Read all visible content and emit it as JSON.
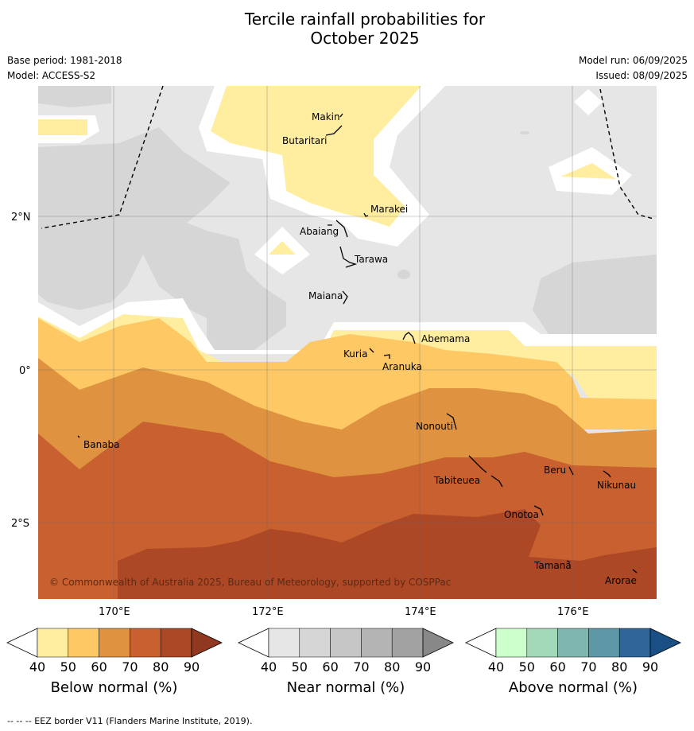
{
  "title": "Tercile rainfall probabilities for\nOctober 2025",
  "title_line1": "Tercile rainfall probabilities for",
  "title_line2": "October 2025",
  "base_period": "Base period: 1981-2018",
  "model": "Model: ACCESS-S2",
  "model_run": "Model run: 06/09/2025",
  "issued": "Issued: 08/09/2025",
  "lat_labels": [
    "2°N",
    "0°",
    "2°S"
  ],
  "lon_labels": [
    "170°E",
    "172°E",
    "174°E",
    "176°E"
  ],
  "places": [
    "Makin",
    "Butaritari",
    "Marakei",
    "Abaiang",
    "Tarawa",
    "Maiana",
    "Abemama",
    "Kuria",
    "Aranuka",
    "Nonouti",
    "Banaba",
    "Beru",
    "Nikunau",
    "Tabiteuea",
    "Onotoa",
    "Tamana",
    "Arorae"
  ],
  "copyright": "© Commonwealth of Australia 2025, Bureau of Meteorology, supported by COSPPac",
  "colorbars": [
    {
      "label": "Below normal (%)",
      "ticks": [
        "40",
        "50",
        "60",
        "70",
        "80",
        "90"
      ],
      "colors": [
        "#ffffff",
        "#ffeda0",
        "#fec965",
        "#df923f",
        "#c8602f",
        "#ad4826",
        "#903820"
      ]
    },
    {
      "label": "Near normal (%)",
      "ticks": [
        "40",
        "50",
        "60",
        "70",
        "80",
        "90"
      ],
      "colors": [
        "#ffffff",
        "#e6e6e6",
        "#d6d6d6",
        "#c6c6c6",
        "#b4b4b4",
        "#a2a2a2",
        "#888888"
      ]
    },
    {
      "label": "Above normal (%)",
      "ticks": [
        "40",
        "50",
        "60",
        "70",
        "80",
        "90"
      ],
      "colors": [
        "#ffffff",
        "#ccffcc",
        "#a3d9b9",
        "#7fb7b0",
        "#5e97a5",
        "#2f6598",
        "#1a4f86"
      ]
    }
  ],
  "eez_note": "--  --  -- EEZ border V11 (Flanders Marine Institute, 2019)."
}
